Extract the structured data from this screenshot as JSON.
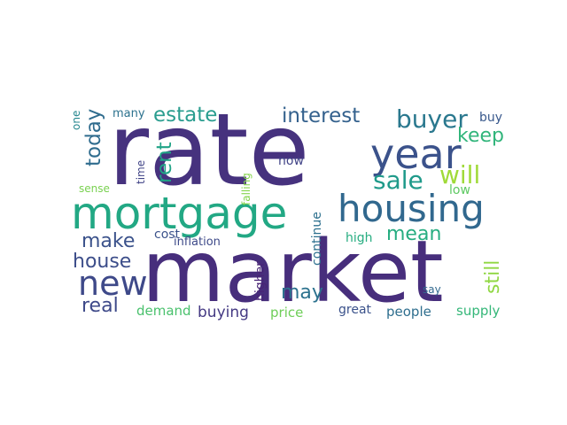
{
  "word_cloud": {
    "words": [
      {
        "text": "rate",
        "color": "#46327e"
      },
      {
        "text": "market",
        "color": "#472e7c"
      },
      {
        "text": "mortgage",
        "color": "#22a884"
      },
      {
        "text": "housing",
        "color": "#31688e"
      },
      {
        "text": "year",
        "color": "#3b528b"
      },
      {
        "text": "new",
        "color": "#3e4989"
      },
      {
        "text": "buyer",
        "color": "#2a788e"
      },
      {
        "text": "sale",
        "color": "#1f9a8a"
      },
      {
        "text": "will",
        "color": "#a0da39"
      },
      {
        "text": "estate",
        "color": "#2a9d8f"
      },
      {
        "text": "interest",
        "color": "#34618d"
      },
      {
        "text": "today",
        "color": "#2f6c8e"
      },
      {
        "text": "rent",
        "color": "#20a386"
      },
      {
        "text": "keep",
        "color": "#31b57b"
      },
      {
        "text": "make",
        "color": "#3b528b"
      },
      {
        "text": "house",
        "color": "#3d4e8a"
      },
      {
        "text": "mean",
        "color": "#27ad81"
      },
      {
        "text": "real",
        "color": "#3e4989"
      },
      {
        "text": "may",
        "color": "#2c728e"
      },
      {
        "text": "still",
        "color": "#90d743"
      },
      {
        "text": "buying",
        "color": "#443983"
      },
      {
        "text": "demand",
        "color": "#4ac16d"
      },
      {
        "text": "price",
        "color": "#6ece58"
      },
      {
        "text": "people",
        "color": "#2e6e8e"
      },
      {
        "text": "supply",
        "color": "#35b779"
      },
      {
        "text": "great",
        "color": "#3b528b"
      },
      {
        "text": "higher",
        "color": "#482475"
      },
      {
        "text": "continue",
        "color": "#2d708e"
      },
      {
        "text": "high",
        "color": "#27ad81"
      },
      {
        "text": "cost",
        "color": "#3b528b"
      },
      {
        "text": "inflation",
        "color": "#3e4a89"
      },
      {
        "text": "now",
        "color": "#414487"
      },
      {
        "text": "buy",
        "color": "#38588c"
      },
      {
        "text": "low",
        "color": "#5ec962"
      },
      {
        "text": "say",
        "color": "#31688e"
      },
      {
        "text": "many",
        "color": "#2c728e"
      },
      {
        "text": "one",
        "color": "#24868e"
      },
      {
        "text": "sense",
        "color": "#7ad151"
      },
      {
        "text": "time",
        "color": "#414487"
      },
      {
        "text": "falling",
        "color": "#84d44b"
      }
    ]
  }
}
